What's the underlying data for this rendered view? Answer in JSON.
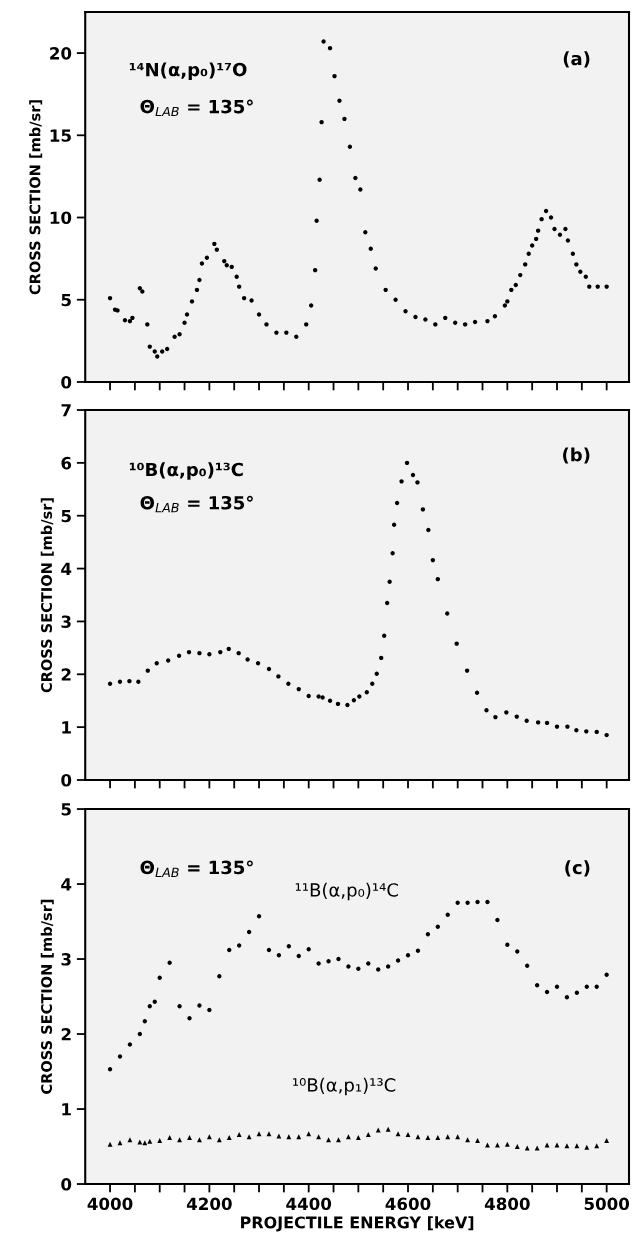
{
  "chart_data": [
    {
      "type": "scatter",
      "marker": "circle",
      "tick_labels": "y",
      "ylabel": "CROSS SECTION [mb/sr]",
      "annotations": [
        "¹⁴N(α,p₀)¹⁷O",
        "Θ$_{LAB}$ = 135°",
        "(a)"
      ],
      "xlim": [
        3950,
        5045
      ],
      "ylim": [
        0,
        22.5
      ],
      "xticks": [
        4000,
        {
          "value": 4050,
          "label": null
        },
        4200,
        {
          "value": 4100,
          "label": null
        },
        {
          "value": 4150,
          "label": null
        },
        {
          "value": 4250,
          "label": null
        },
        4400,
        {
          "value": 4300,
          "label": null
        },
        {
          "value": 4350,
          "label": null
        },
        {
          "value": 4450,
          "label": null
        },
        4600,
        {
          "value": 4500,
          "label": null
        },
        {
          "value": 4550,
          "label": null
        },
        {
          "value": 4650,
          "label": null
        },
        4800,
        {
          "value": 4700,
          "label": null
        },
        {
          "value": 4750,
          "label": null
        },
        {
          "value": 4850,
          "label": null
        },
        {
          "value": 4900,
          "label": null
        },
        {
          "value": 4950,
          "label": null
        },
        5000
      ],
      "yticks": [
        0,
        5,
        10,
        15,
        20
      ],
      "series": [
        {
          "color": "#000000",
          "x": [
            4000,
            4010,
            4015,
            4030,
            4040,
            4045,
            4060,
            4065,
            4075,
            4080,
            4090,
            4095,
            4105,
            4115,
            4130,
            4140,
            4150,
            4155,
            4165,
            4175,
            4180,
            4185,
            4195,
            4210,
            4215,
            4230,
            4235,
            4245,
            4255,
            4260,
            4270,
            4285,
            4300,
            4315,
            4335,
            4355,
            4375,
            4395,
            4405,
            4413,
            4416,
            4422,
            4426,
            4430,
            4443,
            4452,
            4462,
            4472,
            4483,
            4494,
            4504,
            4514,
            4525,
            4535,
            4555,
            4575,
            4595,
            4615,
            4635,
            4655,
            4675,
            4695,
            4715,
            4735,
            4760,
            4775,
            4795,
            4800,
            4808,
            4817,
            4826,
            4836,
            4843,
            4850,
            4858,
            4862,
            4869,
            4878,
            4888,
            4895,
            4906,
            4917,
            4922,
            4932,
            4939,
            4947,
            4958,
            4965,
            4982,
            5000
          ],
          "values": [
            5.1,
            4.4,
            4.35,
            3.75,
            3.7,
            3.9,
            5.7,
            5.5,
            3.5,
            2.15,
            1.85,
            1.55,
            1.85,
            2.0,
            2.75,
            2.9,
            3.6,
            4.1,
            4.9,
            5.6,
            6.2,
            7.2,
            7.55,
            8.4,
            8.05,
            7.35,
            7.1,
            7.0,
            6.4,
            5.8,
            5.1,
            4.95,
            4.1,
            3.5,
            3.0,
            3.0,
            2.75,
            3.5,
            4.65,
            6.8,
            9.8,
            12.3,
            15.8,
            20.7,
            20.3,
            18.6,
            17.1,
            16.0,
            14.3,
            12.4,
            11.7,
            9.1,
            8.1,
            6.9,
            5.6,
            5.0,
            4.3,
            3.95,
            3.8,
            3.5,
            3.9,
            3.6,
            3.5,
            3.65,
            3.7,
            4.0,
            4.65,
            4.9,
            5.6,
            5.9,
            6.5,
            7.15,
            7.8,
            8.3,
            8.7,
            9.2,
            9.9,
            10.4,
            10.0,
            9.3,
            8.95,
            9.3,
            8.6,
            7.8,
            7.15,
            6.7,
            6.4,
            5.8,
            5.8,
            5.8
          ]
        }
      ]
    },
    {
      "type": "scatter",
      "marker": "circle",
      "tick_labels": "y",
      "ylabel": "CROSS SECTION [mb/sr]",
      "annotations": [
        "¹⁰B(α,p₀)¹³C",
        "Θ$_{LAB}$ = 135°",
        "(b)"
      ],
      "xlim": [
        3950,
        5045
      ],
      "ylim": [
        0,
        7
      ],
      "xticks": [
        4000,
        {
          "value": 4050,
          "label": null
        },
        4200,
        {
          "value": 4100,
          "label": null
        },
        {
          "value": 4150,
          "label": null
        },
        {
          "value": 4250,
          "label": null
        },
        4400,
        {
          "value": 4300,
          "label": null
        },
        {
          "value": 4350,
          "label": null
        },
        {
          "value": 4450,
          "label": null
        },
        4600,
        {
          "value": 4500,
          "label": null
        },
        {
          "value": 4550,
          "label": null
        },
        {
          "value": 4650,
          "label": null
        },
        4800,
        {
          "value": 4700,
          "label": null
        },
        {
          "value": 4750,
          "label": null
        },
        {
          "value": 4850,
          "label": null
        },
        {
          "value": 4900,
          "label": null
        },
        {
          "value": 4950,
          "label": null
        },
        5000
      ],
      "yticks": [
        0,
        1,
        2,
        3,
        4,
        5,
        6,
        7
      ],
      "series": [
        {
          "color": "#000000",
          "x": [
            4000,
            4020,
            4039,
            4057,
            4076,
            4094,
            4117,
            4139,
            4159,
            4180,
            4200,
            4222,
            4239,
            4259,
            4277,
            4298,
            4320,
            4339,
            4359,
            4380,
            4400,
            4420,
            4428,
            4443,
            4459,
            4478,
            4491,
            4502,
            4517,
            4528,
            4537,
            4546,
            4552,
            4558,
            4563,
            4569,
            4572,
            4578,
            4587,
            4598,
            4610,
            4619,
            4630,
            4641,
            4650,
            4660,
            4679,
            4698,
            4719,
            4739,
            4758,
            4776,
            4798,
            4819,
            4839,
            4862,
            4880,
            4900,
            4921,
            4939,
            4959,
            4980,
            5000
          ],
          "values": [
            1.82,
            1.86,
            1.87,
            1.86,
            2.07,
            2.21,
            2.26,
            2.35,
            2.42,
            2.4,
            2.38,
            2.42,
            2.48,
            2.4,
            2.28,
            2.21,
            2.1,
            1.96,
            1.82,
            1.72,
            1.59,
            1.58,
            1.56,
            1.5,
            1.44,
            1.42,
            1.51,
            1.58,
            1.66,
            1.82,
            2.01,
            2.31,
            2.73,
            3.35,
            3.75,
            4.29,
            4.83,
            5.24,
            5.65,
            6.0,
            5.77,
            5.63,
            5.12,
            4.73,
            4.16,
            3.8,
            3.15,
            2.58,
            2.07,
            1.65,
            1.32,
            1.19,
            1.28,
            1.2,
            1.12,
            1.09,
            1.08,
            1.01,
            1.01,
            0.94,
            0.92,
            0.91,
            0.85
          ]
        }
      ]
    },
    {
      "type": "scatter",
      "marker": "circle",
      "ylabel": "CROSS SECTION [mb/sr]",
      "xlabel": "PROJECTILE ENERGY [keV]",
      "annotations": [
        "Θ$_{LAB}$ = 135°",
        "(c)"
      ],
      "xlim": [
        3950,
        5045
      ],
      "ylim": [
        0,
        5
      ],
      "xticks": [
        4000,
        {
          "value": 4050,
          "label": null
        },
        4200,
        {
          "value": 4100,
          "label": null
        },
        {
          "value": 4150,
          "label": null
        },
        {
          "value": 4250,
          "label": null
        },
        4400,
        {
          "value": 4300,
          "label": null
        },
        {
          "value": 4350,
          "label": null
        },
        {
          "value": 4450,
          "label": null
        },
        4600,
        {
          "value": 4500,
          "label": null
        },
        {
          "value": 4550,
          "label": null
        },
        {
          "value": 4650,
          "label": null
        },
        4800,
        {
          "value": 4700,
          "label": null
        },
        {
          "value": 4750,
          "label": null
        },
        {
          "value": 4850,
          "label": null
        },
        {
          "value": 4900,
          "label": null
        },
        {
          "value": 4950,
          "label": null
        },
        5000
      ],
      "yticks": [
        0,
        1,
        2,
        3,
        4,
        5
      ],
      "series": [
        {
          "name": "¹¹B(α,p₀)¹⁴C",
          "color": "#000000",
          "marker": "circle",
          "x": [
            4000,
            4020,
            4040,
            4060,
            4070,
            4080,
            4090,
            4100,
            4120,
            4140,
            4160,
            4180,
            4200,
            4220,
            4240,
            4260,
            4280,
            4300,
            4320,
            4340,
            4360,
            4380,
            4400,
            4420,
            4440,
            4460,
            4480,
            4500,
            4520,
            4540,
            4560,
            4580,
            4600,
            4620,
            4640,
            4660,
            4680,
            4700,
            4720,
            4740,
            4760,
            4780,
            4800,
            4820,
            4840,
            4860,
            4880,
            4900,
            4920,
            4940,
            4960,
            4980,
            5000
          ],
          "values": [
            1.53,
            1.7,
            1.86,
            2.0,
            2.17,
            2.37,
            2.43,
            2.75,
            2.95,
            2.37,
            2.21,
            2.38,
            2.32,
            2.77,
            3.12,
            3.18,
            3.36,
            3.57,
            3.12,
            3.05,
            3.17,
            3.04,
            3.13,
            2.94,
            2.97,
            3.0,
            2.9,
            2.87,
            2.94,
            2.86,
            2.9,
            2.98,
            3.05,
            3.11,
            3.33,
            3.43,
            3.59,
            3.75,
            3.75,
            3.76,
            3.76,
            3.52,
            3.19,
            3.1,
            2.91,
            2.65,
            2.56,
            2.63,
            2.49,
            2.55,
            2.63,
            2.63,
            2.79
          ]
        },
        {
          "name": "¹⁰B(α,p₁)¹³C",
          "color": "#000000",
          "marker": "triangle",
          "x": [
            4000,
            4020,
            4040,
            4060,
            4070,
            4080,
            4100,
            4120,
            4140,
            4160,
            4180,
            4200,
            4220,
            4240,
            4260,
            4280,
            4300,
            4320,
            4340,
            4360,
            4380,
            4400,
            4420,
            4440,
            4460,
            4480,
            4500,
            4520,
            4540,
            4560,
            4580,
            4600,
            4620,
            4640,
            4660,
            4680,
            4700,
            4720,
            4740,
            4760,
            4780,
            4800,
            4820,
            4840,
            4860,
            4880,
            4900,
            4920,
            4940,
            4960,
            4980,
            5000
          ],
          "values": [
            0.53,
            0.55,
            0.59,
            0.56,
            0.55,
            0.57,
            0.58,
            0.62,
            0.59,
            0.62,
            0.59,
            0.63,
            0.59,
            0.62,
            0.66,
            0.63,
            0.67,
            0.67,
            0.64,
            0.63,
            0.63,
            0.67,
            0.63,
            0.59,
            0.59,
            0.63,
            0.62,
            0.66,
            0.72,
            0.73,
            0.67,
            0.66,
            0.63,
            0.62,
            0.62,
            0.63,
            0.63,
            0.59,
            0.58,
            0.52,
            0.52,
            0.53,
            0.5,
            0.48,
            0.48,
            0.52,
            0.52,
            0.51,
            0.51,
            0.49,
            0.51,
            0.58
          ]
        }
      ]
    }
  ]
}
